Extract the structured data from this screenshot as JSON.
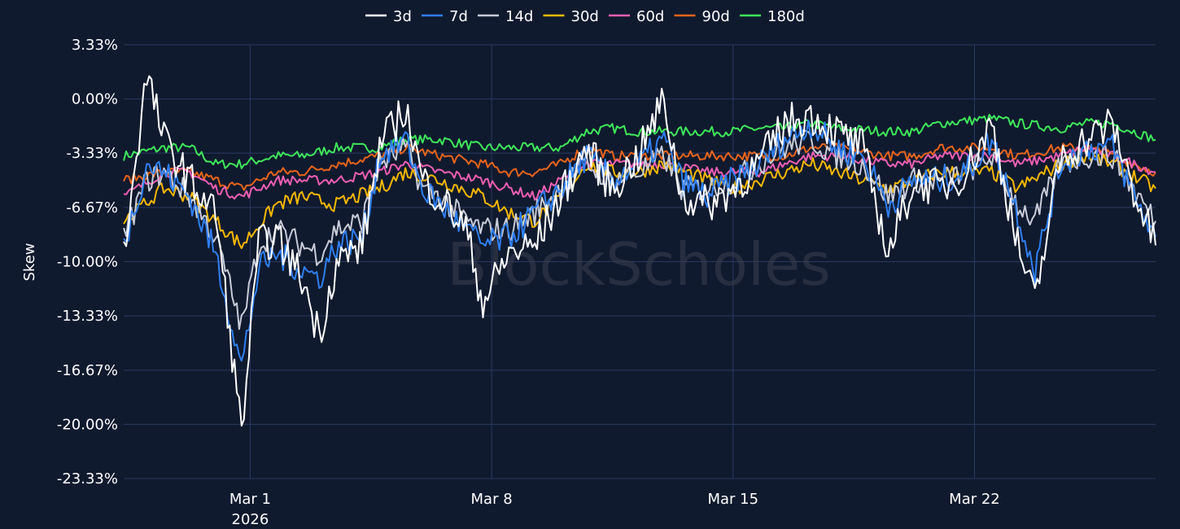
{
  "chart_data": {
    "type": "line",
    "ylabel": "Skew",
    "watermark": "BlockScholes",
    "y_ticks": [
      "3.33%",
      "0.00%",
      "-3.33%",
      "-6.67%",
      "-10.00%",
      "-13.33%",
      "-16.67%",
      "-20.00%",
      "-23.33%"
    ],
    "y_tick_values": [
      3.33,
      0.0,
      -3.33,
      -6.67,
      -10.0,
      -13.33,
      -16.67,
      -20.0,
      -23.33
    ],
    "ylim": [
      -23.33,
      3.33
    ],
    "x_ticks": [
      {
        "label": "Mar 1",
        "sublabel": "2026",
        "x": "2026-03-01"
      },
      {
        "label": "Mar 8",
        "sublabel": "",
        "x": "2026-03-08"
      },
      {
        "label": "Mar 15",
        "sublabel": "",
        "x": "2026-03-15"
      },
      {
        "label": "Mar 22",
        "sublabel": "",
        "x": "2026-03-22"
      }
    ],
    "xlim": [
      "2026-02-25T08:00",
      "2026-03-27T06:00"
    ],
    "grid": true,
    "legend_position": "top-center",
    "series": [
      {
        "name": "3d",
        "color": "#ffffff",
        "wiggle": 1.2,
        "x": [
          "2026-02-25T08:00",
          "2026-02-26T00:00",
          "2026-02-26T12:00",
          "2026-02-27T06:00",
          "2026-02-28T00:00",
          "2026-02-28T18:00",
          "2026-03-01T06:00",
          "2026-03-01T18:00",
          "2026-03-02T12:00",
          "2026-03-03T00:00",
          "2026-03-03T12:00",
          "2026-03-04T06:00",
          "2026-03-04T18:00",
          "2026-03-05T12:00",
          "2026-03-06T00:00",
          "2026-03-06T12:00",
          "2026-03-07T06:00",
          "2026-03-07T18:00",
          "2026-03-08T12:00",
          "2026-03-09T06:00",
          "2026-03-10T00:00",
          "2026-03-10T18:00",
          "2026-03-11T12:00",
          "2026-03-12T06:00",
          "2026-03-13T00:00",
          "2026-03-13T12:00",
          "2026-03-14T06:00",
          "2026-03-15T00:00",
          "2026-03-15T18:00",
          "2026-03-16T12:00",
          "2026-03-17T06:00",
          "2026-03-18T00:00",
          "2026-03-18T18:00",
          "2026-03-19T12:00",
          "2026-03-20T06:00",
          "2026-03-21T00:00",
          "2026-03-21T18:00",
          "2026-03-22T12:00",
          "2026-03-23T06:00",
          "2026-03-23T18:00",
          "2026-03-24T12:00",
          "2026-03-25T06:00",
          "2026-03-26T00:00",
          "2026-03-26T18:00",
          "2026-03-27T06:00"
        ],
        "values": [
          -9.5,
          1.5,
          -2.5,
          -5.0,
          -7.0,
          -20.5,
          -9.0,
          -8.5,
          -11.0,
          -14.5,
          -10.0,
          -9.0,
          -3.0,
          -0.5,
          -5.0,
          -6.0,
          -8.0,
          -12.5,
          -9.5,
          -9.0,
          -6.0,
          -3.0,
          -5.5,
          -3.5,
          0.0,
          -6.0,
          -6.5,
          -5.5,
          -4.0,
          -1.5,
          -1.0,
          -2.0,
          -3.0,
          -9.5,
          -5.0,
          -5.5,
          -4.5,
          -1.5,
          -9.0,
          -12.5,
          -3.5,
          -2.5,
          -1.5,
          -6.5,
          -9.0
        ]
      },
      {
        "name": "7d",
        "color": "#2f7ff2",
        "wiggle": 0.9,
        "x": [
          "2026-02-25T08:00",
          "2026-02-26T00:00",
          "2026-02-26T12:00",
          "2026-02-27T06:00",
          "2026-02-28T00:00",
          "2026-02-28T18:00",
          "2026-03-01T06:00",
          "2026-03-01T18:00",
          "2026-03-02T12:00",
          "2026-03-03T00:00",
          "2026-03-03T12:00",
          "2026-03-04T06:00",
          "2026-03-04T18:00",
          "2026-03-05T12:00",
          "2026-03-06T00:00",
          "2026-03-06T12:00",
          "2026-03-07T06:00",
          "2026-03-07T18:00",
          "2026-03-08T12:00",
          "2026-03-09T06:00",
          "2026-03-10T00:00",
          "2026-03-10T18:00",
          "2026-03-11T12:00",
          "2026-03-12T06:00",
          "2026-03-13T00:00",
          "2026-03-13T12:00",
          "2026-03-14T06:00",
          "2026-03-15T00:00",
          "2026-03-15T18:00",
          "2026-03-16T12:00",
          "2026-03-17T06:00",
          "2026-03-18T00:00",
          "2026-03-18T18:00",
          "2026-03-19T12:00",
          "2026-03-20T06:00",
          "2026-03-21T00:00",
          "2026-03-21T18:00",
          "2026-03-22T12:00",
          "2026-03-23T06:00",
          "2026-03-23T18:00",
          "2026-03-24T12:00",
          "2026-03-25T06:00",
          "2026-03-26T00:00",
          "2026-03-26T18:00",
          "2026-03-27T06:00"
        ],
        "values": [
          -9.0,
          -4.0,
          -4.5,
          -6.0,
          -9.5,
          -16.5,
          -10.5,
          -9.5,
          -10.5,
          -11.0,
          -9.0,
          -8.5,
          -3.5,
          -2.5,
          -5.5,
          -6.5,
          -8.0,
          -9.0,
          -8.5,
          -7.0,
          -5.5,
          -3.5,
          -5.0,
          -4.0,
          -2.5,
          -5.0,
          -6.0,
          -5.0,
          -4.0,
          -2.5,
          -1.5,
          -3.0,
          -3.5,
          -6.5,
          -5.0,
          -5.0,
          -4.5,
          -2.5,
          -7.0,
          -10.5,
          -4.0,
          -3.0,
          -3.0,
          -6.5,
          -8.5
        ]
      },
      {
        "name": "14d",
        "color": "#c8ccd8",
        "wiggle": 0.8,
        "x": [
          "2026-02-25T08:00",
          "2026-02-26T00:00",
          "2026-02-26T12:00",
          "2026-02-27T06:00",
          "2026-02-28T00:00",
          "2026-02-28T18:00",
          "2026-03-01T06:00",
          "2026-03-01T18:00",
          "2026-03-02T12:00",
          "2026-03-03T00:00",
          "2026-03-03T12:00",
          "2026-03-04T06:00",
          "2026-03-04T18:00",
          "2026-03-05T12:00",
          "2026-03-06T00:00",
          "2026-03-06T12:00",
          "2026-03-07T06:00",
          "2026-03-07T18:00",
          "2026-03-08T12:00",
          "2026-03-09T06:00",
          "2026-03-10T00:00",
          "2026-03-10T18:00",
          "2026-03-11T12:00",
          "2026-03-12T06:00",
          "2026-03-13T00:00",
          "2026-03-13T12:00",
          "2026-03-14T06:00",
          "2026-03-15T00:00",
          "2026-03-15T18:00",
          "2026-03-16T12:00",
          "2026-03-17T06:00",
          "2026-03-18T00:00",
          "2026-03-18T18:00",
          "2026-03-19T12:00",
          "2026-03-20T06:00",
          "2026-03-21T00:00",
          "2026-03-21T18:00",
          "2026-03-22T12:00",
          "2026-03-23T06:00",
          "2026-03-23T18:00",
          "2026-03-24T12:00",
          "2026-03-25T06:00",
          "2026-03-26T00:00",
          "2026-03-26T18:00",
          "2026-03-27T06:00"
        ],
        "values": [
          -8.5,
          -5.0,
          -4.5,
          -6.0,
          -8.5,
          -14.0,
          -9.0,
          -8.0,
          -9.0,
          -9.5,
          -8.0,
          -7.5,
          -4.0,
          -3.0,
          -5.5,
          -6.0,
          -7.5,
          -8.0,
          -8.0,
          -7.0,
          -5.5,
          -4.0,
          -5.0,
          -4.5,
          -3.5,
          -5.5,
          -5.5,
          -5.0,
          -4.0,
          -3.0,
          -2.5,
          -3.5,
          -4.0,
          -6.0,
          -5.0,
          -5.0,
          -4.5,
          -3.5,
          -6.5,
          -7.5,
          -4.0,
          -3.5,
          -3.5,
          -6.0,
          -7.5
        ]
      },
      {
        "name": "30d",
        "color": "#f5b800",
        "wiggle": 0.45,
        "x": [
          "2026-02-25T08:00",
          "2026-02-26T12:00",
          "2026-02-27T06:00",
          "2026-02-28T00:00",
          "2026-02-28T18:00",
          "2026-03-01T18:00",
          "2026-03-02T12:00",
          "2026-03-03T12:00",
          "2026-03-04T18:00",
          "2026-03-05T12:00",
          "2026-03-06T12:00",
          "2026-03-07T18:00",
          "2026-03-08T12:00",
          "2026-03-09T06:00",
          "2026-03-10T00:00",
          "2026-03-10T18:00",
          "2026-03-11T12:00",
          "2026-03-12T06:00",
          "2026-03-13T00:00",
          "2026-03-14T06:00",
          "2026-03-15T00:00",
          "2026-03-15T18:00",
          "2026-03-16T12:00",
          "2026-03-17T06:00",
          "2026-03-18T00:00",
          "2026-03-19T12:00",
          "2026-03-20T06:00",
          "2026-03-21T00:00",
          "2026-03-22T12:00",
          "2026-03-23T06:00",
          "2026-03-24T12:00",
          "2026-03-25T06:00",
          "2026-03-26T00:00",
          "2026-03-27T06:00"
        ],
        "values": [
          -7.5,
          -5.5,
          -6.0,
          -7.5,
          -9.0,
          -6.5,
          -6.0,
          -6.5,
          -5.5,
          -4.5,
          -5.0,
          -6.0,
          -7.0,
          -7.5,
          -6.0,
          -4.0,
          -4.5,
          -4.5,
          -4.0,
          -5.0,
          -5.5,
          -5.0,
          -4.5,
          -4.0,
          -4.5,
          -5.5,
          -5.0,
          -4.5,
          -4.5,
          -5.5,
          -4.0,
          -3.5,
          -4.0,
          -5.5
        ]
      },
      {
        "name": "60d",
        "color": "#ee5fb4",
        "wiggle": 0.3,
        "x": [
          "2026-02-25T08:00",
          "2026-02-26T12:00",
          "2026-02-27T06:00",
          "2026-02-28T00:00",
          "2026-02-28T18:00",
          "2026-03-01T18:00",
          "2026-03-02T12:00",
          "2026-03-03T12:00",
          "2026-03-04T18:00",
          "2026-03-05T12:00",
          "2026-03-06T12:00",
          "2026-03-07T18:00",
          "2026-03-08T12:00",
          "2026-03-09T06:00",
          "2026-03-10T00:00",
          "2026-03-10T18:00",
          "2026-03-11T12:00",
          "2026-03-12T06:00",
          "2026-03-13T00:00",
          "2026-03-14T06:00",
          "2026-03-15T00:00",
          "2026-03-15T18:00",
          "2026-03-16T12:00",
          "2026-03-17T06:00",
          "2026-03-18T00:00",
          "2026-03-19T12:00",
          "2026-03-20T06:00",
          "2026-03-21T00:00",
          "2026-03-22T12:00",
          "2026-03-23T06:00",
          "2026-03-24T12:00",
          "2026-03-25T06:00",
          "2026-03-26T00:00",
          "2026-03-27T06:00"
        ],
        "values": [
          -6.0,
          -4.5,
          -4.5,
          -5.5,
          -6.0,
          -5.0,
          -5.0,
          -5.0,
          -4.5,
          -4.0,
          -4.5,
          -5.0,
          -5.5,
          -6.0,
          -5.0,
          -4.0,
          -4.0,
          -4.0,
          -4.0,
          -4.5,
          -4.5,
          -4.5,
          -4.0,
          -3.5,
          -3.5,
          -4.0,
          -4.0,
          -3.5,
          -3.5,
          -4.0,
          -3.5,
          -3.0,
          -3.5,
          -4.5
        ]
      },
      {
        "name": "90d",
        "color": "#e8651c",
        "wiggle": 0.3,
        "x": [
          "2026-02-25T08:00",
          "2026-02-26T12:00",
          "2026-02-27T06:00",
          "2026-02-28T00:00",
          "2026-02-28T18:00",
          "2026-03-01T18:00",
          "2026-03-02T12:00",
          "2026-03-03T12:00",
          "2026-03-04T18:00",
          "2026-03-05T12:00",
          "2026-03-06T12:00",
          "2026-03-07T18:00",
          "2026-03-08T12:00",
          "2026-03-09T06:00",
          "2026-03-10T00:00",
          "2026-03-10T18:00",
          "2026-03-11T12:00",
          "2026-03-12T06:00",
          "2026-03-13T00:00",
          "2026-03-14T06:00",
          "2026-03-15T00:00",
          "2026-03-15T18:00",
          "2026-03-16T12:00",
          "2026-03-17T06:00",
          "2026-03-18T00:00",
          "2026-03-19T12:00",
          "2026-03-20T06:00",
          "2026-03-21T00:00",
          "2026-03-22T12:00",
          "2026-03-23T06:00",
          "2026-03-24T12:00",
          "2026-03-25T06:00",
          "2026-03-26T00:00",
          "2026-03-27T06:00"
        ],
        "values": [
          -5.0,
          -4.5,
          -4.5,
          -5.0,
          -5.5,
          -4.5,
          -4.5,
          -4.0,
          -3.5,
          -3.0,
          -3.5,
          -4.0,
          -4.5,
          -4.5,
          -4.0,
          -3.0,
          -3.5,
          -3.5,
          -3.5,
          -3.5,
          -3.5,
          -3.5,
          -3.5,
          -3.0,
          -3.0,
          -3.5,
          -3.5,
          -3.0,
          -3.0,
          -3.5,
          -3.0,
          -3.0,
          -3.5,
          -4.5
        ]
      },
      {
        "name": "180d",
        "color": "#3ee85a",
        "wiggle": 0.3,
        "x": [
          "2026-02-25T08:00",
          "2026-02-26T12:00",
          "2026-02-27T06:00",
          "2026-02-28T00:00",
          "2026-02-28T18:00",
          "2026-03-01T18:00",
          "2026-03-02T12:00",
          "2026-03-03T12:00",
          "2026-03-04T18:00",
          "2026-03-05T12:00",
          "2026-03-06T12:00",
          "2026-03-07T18:00",
          "2026-03-08T12:00",
          "2026-03-09T06:00",
          "2026-03-10T00:00",
          "2026-03-10T18:00",
          "2026-03-11T12:00",
          "2026-03-12T06:00",
          "2026-03-13T00:00",
          "2026-03-14T06:00",
          "2026-03-15T00:00",
          "2026-03-15T18:00",
          "2026-03-16T12:00",
          "2026-03-17T06:00",
          "2026-03-18T00:00",
          "2026-03-19T12:00",
          "2026-03-20T06:00",
          "2026-03-21T00:00",
          "2026-03-22T12:00",
          "2026-03-23T06:00",
          "2026-03-24T12:00",
          "2026-03-25T06:00",
          "2026-03-26T00:00",
          "2026-03-27T06:00"
        ],
        "values": [
          -3.5,
          -3.0,
          -3.0,
          -4.0,
          -4.0,
          -3.5,
          -3.5,
          -3.0,
          -3.0,
          -2.5,
          -2.5,
          -3.0,
          -3.0,
          -3.0,
          -3.0,
          -2.0,
          -1.8,
          -2.0,
          -2.0,
          -2.0,
          -2.0,
          -1.8,
          -1.8,
          -1.5,
          -1.8,
          -2.0,
          -2.0,
          -1.5,
          -1.2,
          -1.5,
          -1.8,
          -1.5,
          -1.5,
          -2.5
        ]
      }
    ]
  }
}
